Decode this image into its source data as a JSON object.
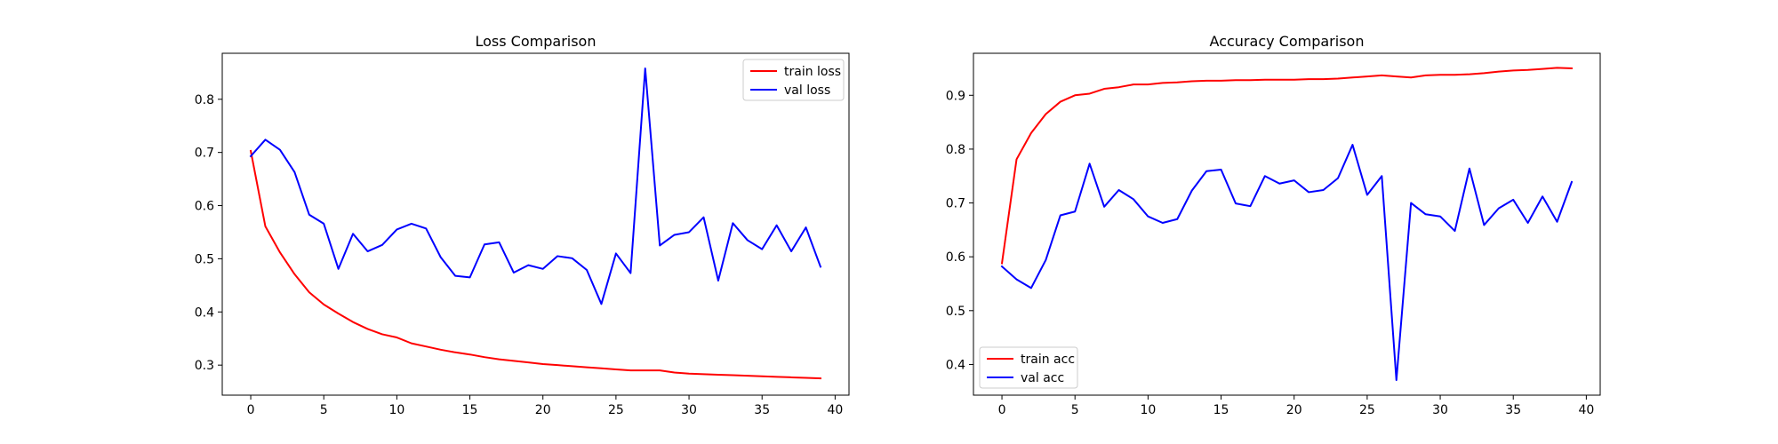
{
  "chart_data": [
    {
      "type": "line",
      "title": "Loss Comparison",
      "xlabel": "",
      "ylabel": "",
      "xlim": [
        -1.95,
        40.95
      ],
      "ylim": [
        0.2435,
        0.8865
      ],
      "xticks": [
        0,
        5,
        10,
        15,
        20,
        25,
        30,
        35,
        40
      ],
      "yticks": [
        0.3,
        0.4,
        0.5,
        0.6,
        0.7,
        0.8
      ],
      "grid": false,
      "legend": "top-right",
      "series": [
        {
          "name": "train loss",
          "color": "#ff0000",
          "x": [
            0,
            1,
            2,
            3,
            4,
            5,
            6,
            7,
            8,
            9,
            10,
            11,
            12,
            13,
            14,
            15,
            16,
            17,
            18,
            19,
            20,
            21,
            22,
            23,
            24,
            25,
            26,
            27,
            28,
            29,
            30,
            31,
            32,
            33,
            34,
            35,
            36,
            37,
            38,
            39
          ],
          "y": [
            0.703,
            0.561,
            0.512,
            0.471,
            0.437,
            0.414,
            0.397,
            0.381,
            0.368,
            0.358,
            0.352,
            0.341,
            0.335,
            0.329,
            0.324,
            0.32,
            0.315,
            0.311,
            0.308,
            0.305,
            0.302,
            0.3,
            0.298,
            0.296,
            0.294,
            0.292,
            0.29,
            0.29,
            0.29,
            0.286,
            0.284,
            0.283,
            0.282,
            0.281,
            0.28,
            0.279,
            0.278,
            0.277,
            0.276,
            0.275
          ]
        },
        {
          "name": "val loss",
          "color": "#0000ff",
          "x": [
            0,
            1,
            2,
            3,
            4,
            5,
            6,
            7,
            8,
            9,
            10,
            11,
            12,
            13,
            14,
            15,
            16,
            17,
            18,
            19,
            20,
            21,
            22,
            23,
            24,
            25,
            26,
            27,
            28,
            29,
            30,
            31,
            32,
            33,
            34,
            35,
            36,
            37,
            38,
            39
          ],
          "y": [
            0.693,
            0.724,
            0.705,
            0.663,
            0.583,
            0.566,
            0.481,
            0.547,
            0.514,
            0.526,
            0.555,
            0.566,
            0.557,
            0.503,
            0.468,
            0.465,
            0.527,
            0.531,
            0.474,
            0.488,
            0.481,
            0.505,
            0.501,
            0.479,
            0.415,
            0.51,
            0.473,
            0.858,
            0.525,
            0.545,
            0.55,
            0.578,
            0.459,
            0.567,
            0.535,
            0.518,
            0.563,
            0.514,
            0.559,
            0.485
          ]
        }
      ]
    },
    {
      "type": "line",
      "title": "Accuracy Comparison",
      "xlabel": "",
      "ylabel": "",
      "xlim": [
        -1.95,
        40.95
      ],
      "ylim": [
        0.343,
        0.978
      ],
      "xticks": [
        0,
        5,
        10,
        15,
        20,
        25,
        30,
        35,
        40
      ],
      "yticks": [
        0.4,
        0.5,
        0.6,
        0.7,
        0.8,
        0.9
      ],
      "grid": false,
      "legend": "bottom-left",
      "series": [
        {
          "name": "train acc",
          "color": "#ff0000",
          "x": [
            0,
            1,
            2,
            3,
            4,
            5,
            6,
            7,
            8,
            9,
            10,
            11,
            12,
            13,
            14,
            15,
            16,
            17,
            18,
            19,
            20,
            21,
            22,
            23,
            24,
            25,
            26,
            27,
            28,
            29,
            30,
            31,
            32,
            33,
            34,
            35,
            36,
            37,
            38,
            39
          ],
          "y": [
            0.588,
            0.781,
            0.83,
            0.865,
            0.888,
            0.9,
            0.903,
            0.912,
            0.915,
            0.92,
            0.92,
            0.923,
            0.924,
            0.926,
            0.927,
            0.927,
            0.928,
            0.928,
            0.929,
            0.929,
            0.929,
            0.93,
            0.93,
            0.931,
            0.933,
            0.935,
            0.937,
            0.935,
            0.933,
            0.937,
            0.938,
            0.938,
            0.939,
            0.941,
            0.944,
            0.946,
            0.947,
            0.949,
            0.951,
            0.95
          ]
        },
        {
          "name": "val acc",
          "color": "#0000ff",
          "x": [
            0,
            1,
            2,
            3,
            4,
            5,
            6,
            7,
            8,
            9,
            10,
            11,
            12,
            13,
            14,
            15,
            16,
            17,
            18,
            19,
            20,
            21,
            22,
            23,
            24,
            25,
            26,
            27,
            28,
            29,
            30,
            31,
            32,
            33,
            34,
            35,
            36,
            37,
            38,
            39
          ],
          "y": [
            0.582,
            0.558,
            0.542,
            0.594,
            0.677,
            0.684,
            0.773,
            0.693,
            0.724,
            0.707,
            0.675,
            0.663,
            0.67,
            0.723,
            0.759,
            0.762,
            0.699,
            0.694,
            0.75,
            0.736,
            0.742,
            0.72,
            0.724,
            0.746,
            0.808,
            0.715,
            0.75,
            0.371,
            0.7,
            0.679,
            0.675,
            0.648,
            0.764,
            0.659,
            0.69,
            0.706,
            0.663,
            0.712,
            0.665,
            0.739
          ]
        }
      ]
    }
  ]
}
